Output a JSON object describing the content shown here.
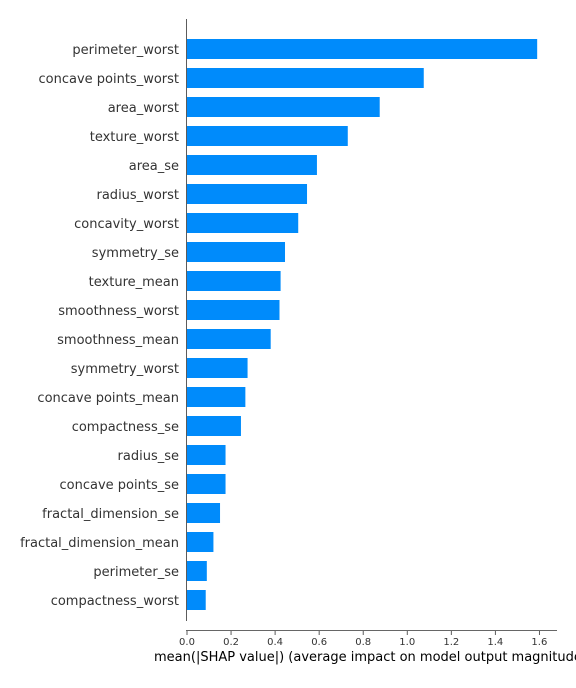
{
  "chart_data": {
    "type": "bar",
    "orientation": "horizontal",
    "title": "",
    "xlabel": "mean(|SHAP value|) (average impact on model output magnitude)",
    "ylabel": "",
    "xlim": [
      0,
      1.68
    ],
    "xticks": [
      0.0,
      0.2,
      0.4,
      0.6,
      0.8,
      1.0,
      1.2,
      1.4,
      1.6
    ],
    "xtick_labels": [
      "0.0",
      "0.2",
      "0.4",
      "0.6",
      "0.8",
      "1.0",
      "1.2",
      "1.4",
      "1.6"
    ],
    "bar_color": "#008bfb",
    "grid": false,
    "categories": [
      "perimeter_worst",
      "concave points_worst",
      "area_worst",
      "texture_worst",
      "area_se",
      "radius_worst",
      "concavity_worst",
      "symmetry_se",
      "texture_mean",
      "smoothness_worst",
      "smoothness_mean",
      "symmetry_worst",
      "concave points_mean",
      "compactness_se",
      "radius_se",
      "concave points_se",
      "fractal_dimension_se",
      "fractal_dimension_mean",
      "perimeter_se",
      "compactness_worst"
    ],
    "values": [
      1.59,
      1.075,
      0.875,
      0.73,
      0.59,
      0.545,
      0.505,
      0.445,
      0.425,
      0.42,
      0.38,
      0.275,
      0.265,
      0.245,
      0.175,
      0.175,
      0.15,
      0.12,
      0.09,
      0.085
    ]
  }
}
